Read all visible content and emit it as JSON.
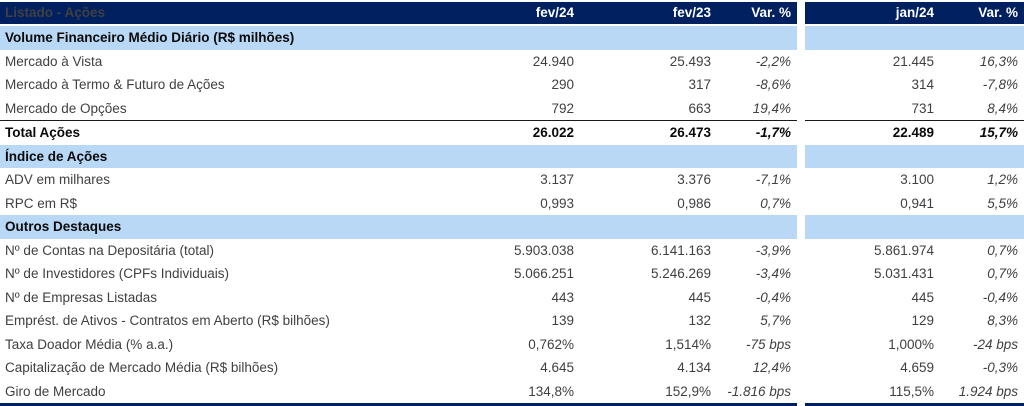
{
  "colors": {
    "header_bg": "#002060",
    "section_bg": "#B9D8F6",
    "body_text": "#404040"
  },
  "header": {
    "title": "Listado - Ações",
    "columns": [
      "fev/24",
      "fev/23",
      "Var. %",
      "jan/24",
      "Var. %"
    ]
  },
  "rows": [
    {
      "type": "section",
      "label": "Volume Financeiro Médio Diário (R$ milhões)",
      "values": [
        "",
        "",
        "",
        "",
        ""
      ]
    },
    {
      "type": "data",
      "label": "Mercado à Vista",
      "values": [
        "24.940",
        "25.493",
        "-2,2%",
        "21.445",
        "16,3%"
      ]
    },
    {
      "type": "data",
      "label": "Mercado à Termo & Futuro de Ações",
      "values": [
        "290",
        "317",
        "-8,6%",
        "314",
        "-7,8%"
      ]
    },
    {
      "type": "data",
      "label": "Mercado de Opções",
      "values": [
        "792",
        "663",
        "19,4%",
        "731",
        "8,4%"
      ]
    },
    {
      "type": "total",
      "label": "Total Ações",
      "values": [
        "26.022",
        "26.473",
        "-1,7%",
        "22.489",
        "15,7%"
      ]
    },
    {
      "type": "section",
      "label": "Índice de Ações",
      "values": [
        "",
        "",
        "",
        "",
        ""
      ]
    },
    {
      "type": "data",
      "label": "ADV em milhares",
      "values": [
        "3.137",
        "3.376",
        "-7,1%",
        "3.100",
        "1,2%"
      ]
    },
    {
      "type": "data",
      "label": "RPC em R$",
      "values": [
        "0,993",
        "0,986",
        "0,7%",
        "0,941",
        "5,5%"
      ]
    },
    {
      "type": "section",
      "label": "Outros Destaques",
      "values": [
        "",
        "",
        "",
        "",
        ""
      ]
    },
    {
      "type": "data",
      "label": "Nº de Contas na Depositária (total)",
      "values": [
        "5.903.038",
        "6.141.163",
        "-3,9%",
        "5.861.974",
        "0,7%"
      ]
    },
    {
      "type": "data",
      "label": "Nº de Investidores (CPFs Individuais)",
      "values": [
        "5.066.251",
        "5.246.269",
        "-3,4%",
        "5.031.431",
        "0,7%"
      ]
    },
    {
      "type": "data",
      "label": "Nº de Empresas Listadas",
      "values": [
        "443",
        "445",
        "-0,4%",
        "445",
        "-0,4%"
      ]
    },
    {
      "type": "data",
      "label": "Emprést. de Ativos - Contratos em Aberto (R$ bilhões)",
      "values": [
        "139",
        "132",
        "5,7%",
        "129",
        "8,3%"
      ]
    },
    {
      "type": "data",
      "label": "Taxa Doador Média (% a.a.)",
      "values": [
        "0,762%",
        "1,514%",
        "-75 bps",
        "1,000%",
        "-24 bps"
      ]
    },
    {
      "type": "data",
      "label": "Capitalização de Mercado Média (R$ bilhões)",
      "values": [
        "4.645",
        "4.134",
        "12,4%",
        "4.659",
        "-0,3%"
      ]
    },
    {
      "type": "data",
      "label": "Giro de Mercado",
      "values": [
        "134,8%",
        "152,9%",
        "-1.816 bps",
        "115,5%",
        "1.924 bps"
      ]
    }
  ]
}
